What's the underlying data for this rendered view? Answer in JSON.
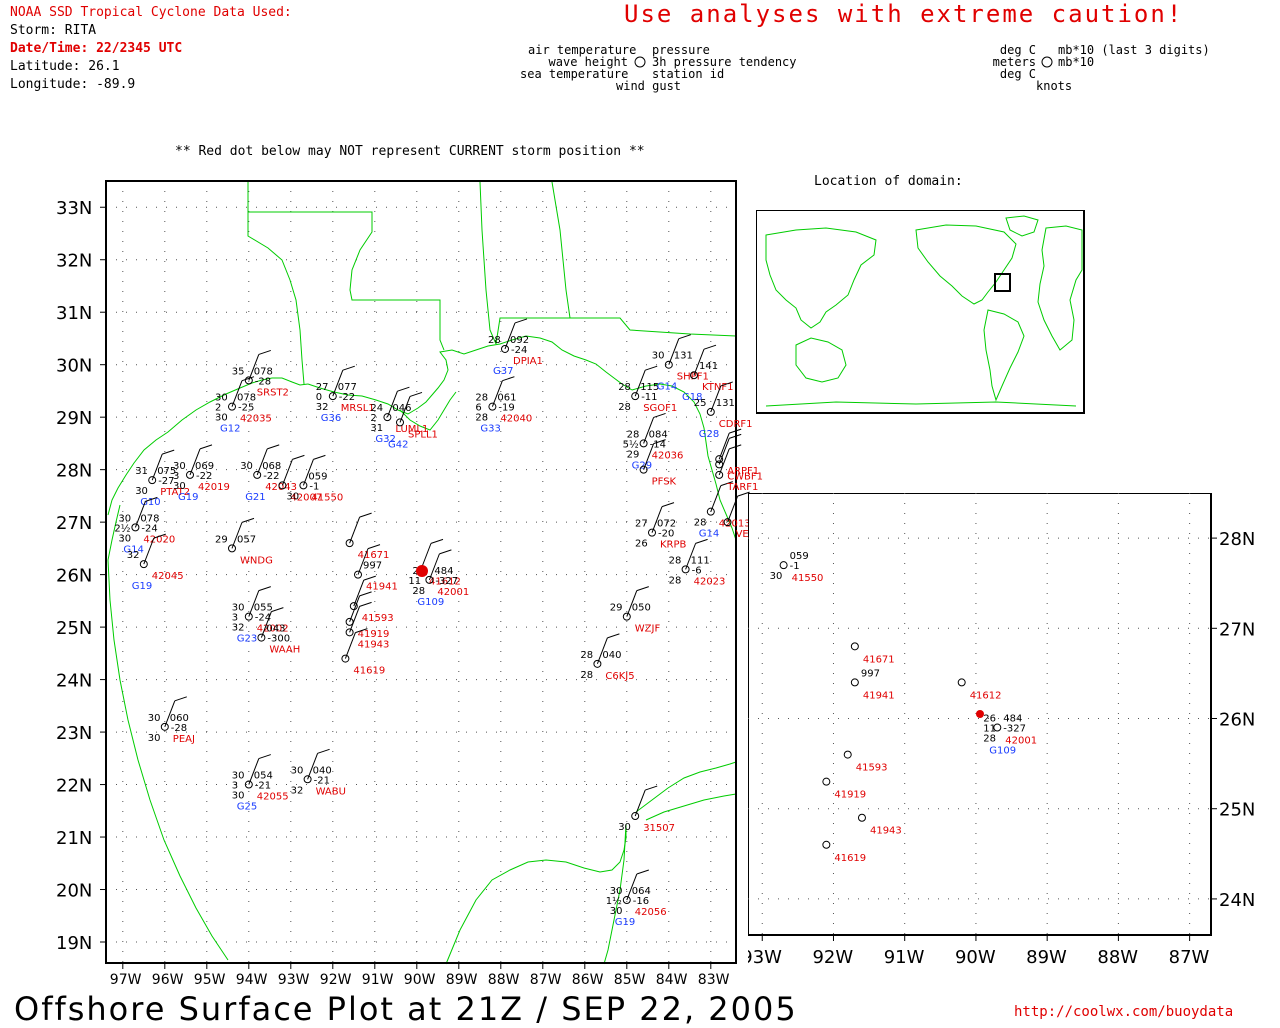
{
  "header": {
    "source": "NOAA SSD Tropical Cyclone Data Used:",
    "storm": "Storm: RITA",
    "datetime": "Date/Time: 22/2345 UTC",
    "latitude": "Latitude: 26.1",
    "longitude": "Longitude: -89.9"
  },
  "caution": "Use analyses with extreme caution!",
  "legend": {
    "left": [
      "air temperature",
      "wave height",
      "sea temperature"
    ],
    "right": [
      "pressure",
      "3h pressure tendency",
      "station id"
    ],
    "bottom": "wind gust",
    "units_left": [
      "deg C",
      "meters",
      "deg C"
    ],
    "units_right": [
      "mb*10 (last 3 digits)",
      "mb*10"
    ],
    "units_bottom": "knots"
  },
  "red_dot_note": "** Red dot below may NOT represent CURRENT storm position **",
  "inset_title": "Location of domain:",
  "main_axes": {
    "lat_labels": [
      "33N",
      "32N",
      "31N",
      "30N",
      "29N",
      "28N",
      "27N",
      "26N",
      "25N",
      "24N",
      "23N",
      "22N",
      "21N",
      "20N",
      "19N"
    ],
    "lon_labels": [
      "97W",
      "96W",
      "95W",
      "94W",
      "93W",
      "92W",
      "91W",
      "90W",
      "89W",
      "88W",
      "87W",
      "86W",
      "85W",
      "84W",
      "83W"
    ]
  },
  "zoom_axes": {
    "lat_labels": [
      "28N",
      "27N",
      "26N",
      "25N",
      "24N"
    ],
    "lon_labels": [
      "93W",
      "92W",
      "91W",
      "90W",
      "89W",
      "88W",
      "87W"
    ]
  },
  "stations": [
    {
      "id": "PTAT2",
      "lon": -96.3,
      "lat": 27.8,
      "air": "31",
      "sea": "30",
      "pres": "075",
      "tend": "-27",
      "gust": "",
      "wave": "",
      "glabel": "G10"
    },
    {
      "id": "42020",
      "lon": -96.7,
      "lat": 26.9,
      "air": "30",
      "sea": "30",
      "pres": "078",
      "tend": "-24",
      "wave": "2½",
      "glabel": "G14"
    },
    {
      "id": "42045",
      "lon": -96.5,
      "lat": 26.2,
      "air": "32",
      "sea": "",
      "pres": "",
      "tend": "",
      "wave": "",
      "glabel": "G19"
    },
    {
      "id": "42019",
      "lon": -95.4,
      "lat": 27.9,
      "air": "30",
      "sea": "30",
      "pres": "069",
      "tend": "-22",
      "wave": "3",
      "glabel": "G19"
    },
    {
      "id": "42035",
      "lon": -94.4,
      "lat": 29.2,
      "air": "30",
      "sea": "30",
      "pres": "078",
      "tend": "-25",
      "wave": "2",
      "glabel": "G12"
    },
    {
      "id": "SRST2",
      "lon": -94.0,
      "lat": 29.7,
      "air": "35",
      "sea": "",
      "pres": "078",
      "tend": "-28",
      "wave": "",
      "glabel": ""
    },
    {
      "id": "42043",
      "lon": -93.8,
      "lat": 27.9,
      "air": "30",
      "sea": "",
      "pres": "068",
      "tend": "-22",
      "wave": "",
      "glabel": "G21"
    },
    {
      "id": "42007",
      "lon": -93.2,
      "lat": 27.7,
      "air": "",
      "sea": "",
      "pres": "",
      "tend": "",
      "wave": "",
      "glabel": ""
    },
    {
      "id": "41550",
      "lon": -92.7,
      "lat": 27.7,
      "air": "",
      "sea": "30",
      "pres": "059",
      "tend": "-1",
      "wave": "",
      "glabel": ""
    },
    {
      "id": "MRSL1",
      "lon": -92.0,
      "lat": 29.4,
      "air": "27",
      "sea": "32",
      "pres": "077",
      "tend": "-22",
      "wave": "0",
      "glabel": "G36"
    },
    {
      "id": "LUML1",
      "lon": -90.7,
      "lat": 29.0,
      "air": "24",
      "sea": "31",
      "pres": "046",
      "tend": "",
      "wave": "2",
      "glabel": "G32"
    },
    {
      "id": "SPLL1",
      "lon": -90.4,
      "lat": 28.9,
      "air": "",
      "sea": "",
      "pres": "",
      "tend": "",
      "wave": "",
      "glabel": "G42"
    },
    {
      "id": "DPIA1",
      "lon": -87.9,
      "lat": 30.3,
      "air": "28",
      "sea": "",
      "pres": "092",
      "tend": "-24",
      "wave": "",
      "glabel": "G37"
    },
    {
      "id": "42040",
      "lon": -88.2,
      "lat": 29.2,
      "air": "28",
      "sea": "28",
      "pres": "061",
      "tend": "-19",
      "wave": "6",
      "glabel": "G33"
    },
    {
      "id": "WNDG",
      "lon": -94.4,
      "lat": 26.5,
      "air": "29",
      "sea": "",
      "pres": "057",
      "tend": "",
      "wave": "",
      "glabel": ""
    },
    {
      "id": "41671",
      "lon": -91.6,
      "lat": 26.6,
      "air": "",
      "sea": "",
      "pres": "",
      "tend": "",
      "wave": "",
      "glabel": ""
    },
    {
      "id": "41941",
      "lon": -91.4,
      "lat": 26.0,
      "air": "",
      "sea": "",
      "pres": "997",
      "tend": "",
      "wave": "",
      "glabel": ""
    },
    {
      "id": "41612",
      "lon": -89.9,
      "lat": 26.1,
      "air": "",
      "sea": "",
      "pres": "",
      "tend": "",
      "wave": "",
      "glabel": ""
    },
    {
      "id": "42001",
      "lon": -89.7,
      "lat": 25.9,
      "air": "26",
      "sea": "28",
      "pres": "484",
      "tend": "-327",
      "wave": "11",
      "glabel": "G109"
    },
    {
      "id": "41593",
      "lon": -91.5,
      "lat": 25.4,
      "air": "",
      "sea": "",
      "pres": "",
      "tend": "",
      "wave": "",
      "glabel": ""
    },
    {
      "id": "41919",
      "lon": -91.6,
      "lat": 25.1,
      "air": "",
      "sea": "",
      "pres": "",
      "tend": "",
      "wave": "",
      "glabel": ""
    },
    {
      "id": "41943",
      "lon": -91.6,
      "lat": 24.9,
      "air": "",
      "sea": "",
      "pres": "",
      "tend": "",
      "wave": "",
      "glabel": ""
    },
    {
      "id": "41619",
      "lon": -91.7,
      "lat": 24.4,
      "air": "",
      "sea": "",
      "pres": "",
      "tend": "",
      "wave": "",
      "glabel": ""
    },
    {
      "id": "42002",
      "lon": -94.0,
      "lat": 25.2,
      "air": "30",
      "sea": "32",
      "pres": "055",
      "tend": "-24",
      "wave": "3",
      "glabel": "G23"
    },
    {
      "id": "WAAH",
      "lon": -93.7,
      "lat": 24.8,
      "air": "",
      "sea": "",
      "pres": "043",
      "tend": "-300",
      "wave": "",
      "glabel": ""
    },
    {
      "id": "PEAJ",
      "lon": -96.0,
      "lat": 23.1,
      "air": "30",
      "sea": "30",
      "pres": "060",
      "tend": "-28",
      "wave": "",
      "glabel": ""
    },
    {
      "id": "42055",
      "lon": -94.0,
      "lat": 22.0,
      "air": "30",
      "sea": "30",
      "pres": "054",
      "tend": "-21",
      "wave": "3",
      "glabel": "G25"
    },
    {
      "id": "WABU",
      "lon": -92.6,
      "lat": 22.1,
      "air": "30",
      "sea": "32",
      "pres": "040",
      "tend": "-21",
      "wave": "",
      "glabel": ""
    },
    {
      "id": "C6KJ5",
      "lon": -85.7,
      "lat": 24.3,
      "air": "28",
      "sea": "28",
      "pres": "040",
      "tend": "",
      "wave": "",
      "glabel": ""
    },
    {
      "id": "WZJF",
      "lon": -85.0,
      "lat": 25.2,
      "air": "29",
      "sea": "",
      "pres": "050",
      "tend": "",
      "wave": "",
      "glabel": ""
    },
    {
      "id": "KRPB",
      "lon": -84.4,
      "lat": 26.8,
      "air": "27",
      "sea": "26",
      "pres": "072",
      "tend": "-20",
      "wave": "",
      "glabel": ""
    },
    {
      "id": "42023",
      "lon": -83.6,
      "lat": 26.1,
      "air": "28",
      "sea": "28",
      "pres": "111",
      "tend": "-6",
      "wave": "",
      "glabel": ""
    },
    {
      "id": "42013",
      "lon": -83.0,
      "lat": 27.2,
      "air": "",
      "sea": "28",
      "pres": "",
      "tend": "",
      "wave": "",
      "glabel": "G14"
    },
    {
      "id": "VENF1",
      "lon": -82.6,
      "lat": 27.0,
      "air": "",
      "sea": "",
      "pres": "",
      "tend": "",
      "wave": "",
      "glabel": ""
    },
    {
      "id": "42036",
      "lon": -84.6,
      "lat": 28.5,
      "air": "28",
      "sea": "29",
      "pres": "084",
      "tend": "-14",
      "wave": "5½",
      "glabel": "G29"
    },
    {
      "id": "SGOF1",
      "lon": -84.8,
      "lat": 29.4,
      "air": "28",
      "sea": "28",
      "pres": "115",
      "tend": "-11",
      "wave": "",
      "glabel": ""
    },
    {
      "id": "PFSK",
      "lon": -84.6,
      "lat": 28.0,
      "air": "",
      "sea": "",
      "pres": "",
      "tend": "",
      "wave": "",
      "glabel": ""
    },
    {
      "id": "SHPF1",
      "lon": -84.0,
      "lat": 30.0,
      "air": "30",
      "sea": "",
      "pres": "131",
      "tend": "",
      "wave": "",
      "glabel": "G14"
    },
    {
      "id": "KTNF1",
      "lon": -83.4,
      "lat": 29.8,
      "air": "",
      "sea": "",
      "pres": "141",
      "tend": "",
      "wave": "",
      "glabel": "G18"
    },
    {
      "id": "CDRF1",
      "lon": -83.0,
      "lat": 29.1,
      "air": "25",
      "sea": "",
      "pres": "131",
      "tend": "",
      "wave": "",
      "glabel": "G28"
    },
    {
      "id": "ARPF1",
      "lon": -82.8,
      "lat": 28.2,
      "air": "",
      "sea": "",
      "pres": "",
      "tend": "",
      "wave": "",
      "glabel": ""
    },
    {
      "id": "CWBF1",
      "lon": -82.8,
      "lat": 28.1,
      "air": "",
      "sea": "",
      "pres": "",
      "tend": "",
      "wave": "",
      "glabel": ""
    },
    {
      "id": "TARF1",
      "lon": -82.8,
      "lat": 27.9,
      "air": "",
      "sea": "",
      "pres": "",
      "tend": "",
      "wave": "",
      "glabel": ""
    },
    {
      "id": "31507",
      "lon": -84.8,
      "lat": 21.4,
      "air": "",
      "sea": "30",
      "pres": "",
      "tend": "",
      "wave": "",
      "glabel": ""
    },
    {
      "id": "42056",
      "lon": -85.0,
      "lat": 19.8,
      "air": "30",
      "sea": "30",
      "pres": "064",
      "tend": "-16",
      "wave": "1½",
      "glabel": "G19"
    }
  ],
  "zoom_stations": [
    {
      "id": "41550",
      "lon": -92.7,
      "lat": 27.7,
      "sea": "30",
      "pres": "059",
      "tend": "-1"
    },
    {
      "id": "41671",
      "lon": -91.7,
      "lat": 26.8
    },
    {
      "id": "41941",
      "lon": -91.7,
      "lat": 26.4,
      "pres": "997"
    },
    {
      "id": "41612",
      "lon": -90.2,
      "lat": 26.4
    },
    {
      "id": "42001",
      "lon": -89.7,
      "lat": 25.9,
      "air": "26",
      "wave": "11",
      "sea": "28",
      "pres": "484",
      "tend": "-327",
      "glabel": "G109"
    },
    {
      "id": "41593",
      "lon": -91.8,
      "lat": 25.6
    },
    {
      "id": "41919",
      "lon": -92.1,
      "lat": 25.3
    },
    {
      "id": "41943",
      "lon": -91.6,
      "lat": 24.9
    },
    {
      "id": "41619",
      "lon": -92.1,
      "lat": 24.6
    }
  ],
  "footer": "Offshore Surface Plot at 21Z / SEP 22, 2005",
  "url": "http://coolwx.com/buoydata",
  "colors": {
    "coast": "#00cc00",
    "station_id": "#e00000",
    "gust_label": "#1a3cff",
    "storm": "#e00000",
    "grid": "#000000"
  }
}
